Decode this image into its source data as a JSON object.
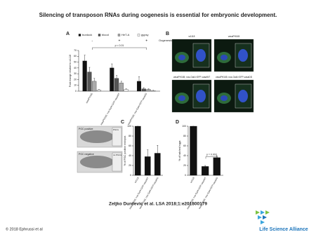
{
  "title": "Silencing of transposon RNAs during oogenesis is essential for embryonic development.",
  "chart_data": [
    {
      "type": "bar",
      "panel": "A",
      "ylabel": "Fold change relative to w1118",
      "categories": [
        "vasaPH165",
        "vasaPH165; nos-Gal4>GFP-vasaWT",
        "vasaPH165; nos-Gal4>GFP-vasaDD"
      ],
      "series": [
        {
          "name": "burdock",
          "color": "#111111",
          "values": [
            52,
            40,
            17
          ],
          "errors": [
            10,
            7,
            8
          ]
        },
        {
          "name": "blood",
          "color": "#555555",
          "values": [
            33,
            22,
            4
          ],
          "errors": [
            8,
            5,
            2
          ]
        },
        {
          "name": "HeT-A",
          "color": "#aaaaaa",
          "values": [
            17,
            14,
            3
          ],
          "errors": [
            5,
            3,
            1
          ]
        },
        {
          "name": "gypsy",
          "color": "#ffffff",
          "values": [
            2,
            3,
            1
          ],
          "errors": [
            1,
            1,
            0.5
          ]
        }
      ],
      "conditions": {
        "label": "Oogenesis",
        "values": [
          "-",
          "+",
          "+"
        ]
      },
      "annotation": "p < 0.01",
      "ylim": [
        0,
        70
      ],
      "yticks": [
        0,
        10,
        20,
        30,
        40,
        50,
        60,
        70
      ]
    },
    {
      "type": "bar",
      "panel": "C",
      "ylabel": "% of PGC positive embryos",
      "categories": [
        "w1118",
        "vasaPH165; nos-Gal4>GFP-vasaWT",
        "vasaPH165; nos-Gal4>GFP-vasaDD"
      ],
      "values": [
        100,
        38,
        45
      ],
      "errors": [
        0,
        14,
        16
      ],
      "color": "#111111",
      "images": [
        "PGC positive",
        "PGC negative"
      ],
      "image_tags": [
        "PGCs",
        "no PGCs"
      ],
      "ylim": [
        0,
        100
      ],
      "yticks": [
        0,
        20,
        40,
        60,
        80,
        100
      ]
    },
    {
      "type": "bar",
      "panel": "D",
      "ylabel": "% of hatched eggs",
      "categories": [
        "w1118",
        "vasaPH165; nos-Gal4>GFP-vasaWT",
        "vasaPH165; nos-Gal4>GFP-vasaDD"
      ],
      "values": [
        100,
        18,
        36
      ],
      "errors": [
        0,
        2,
        4
      ],
      "color": "#111111",
      "annotation": "p = 0.003",
      "ylim": [
        0,
        100
      ],
      "yticks": [
        0,
        20,
        40,
        60,
        80,
        100
      ]
    }
  ],
  "panel_b": {
    "panel": "B",
    "labels": [
      "w1118",
      "vasaPH165",
      "vasaPH165; nos-Gal4>GFP-vasaWT",
      "vasaPH165; nos-Gal4>GFP-vasaDD"
    ]
  },
  "citation": "Zeljko Durdevic et al. LSA 2018;1:e201800179",
  "footer": {
    "copyright": "© 2018 Ephrussi et al",
    "journal": "Life Science Alliance"
  }
}
